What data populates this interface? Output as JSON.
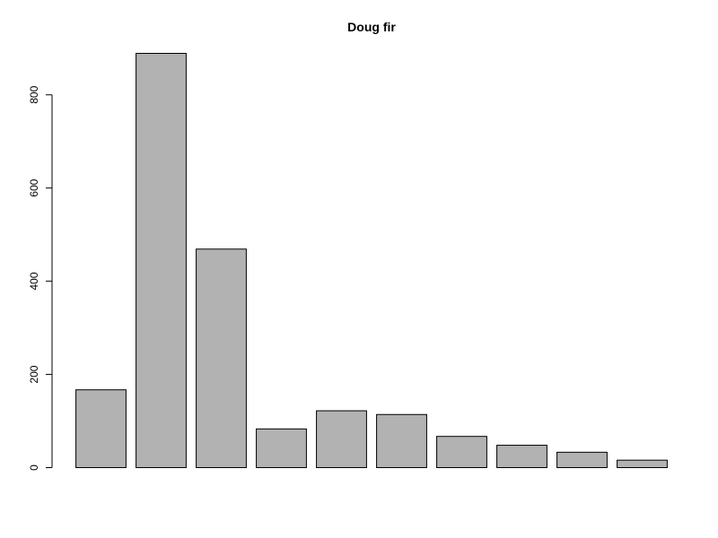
{
  "chart_data": {
    "type": "bar",
    "title": "Doug fir",
    "xlabel": "",
    "ylabel": "",
    "values": [
      167,
      889,
      469,
      83,
      122,
      114,
      67,
      48,
      33,
      16
    ],
    "ylim": [
      0,
      889
    ],
    "yticks": [
      0,
      200,
      400,
      600,
      800
    ],
    "ytick_labels": [
      "0",
      "200",
      "400",
      "600",
      "800"
    ],
    "bar_color": "#b2b2b2",
    "grid": false,
    "legend": "none"
  }
}
